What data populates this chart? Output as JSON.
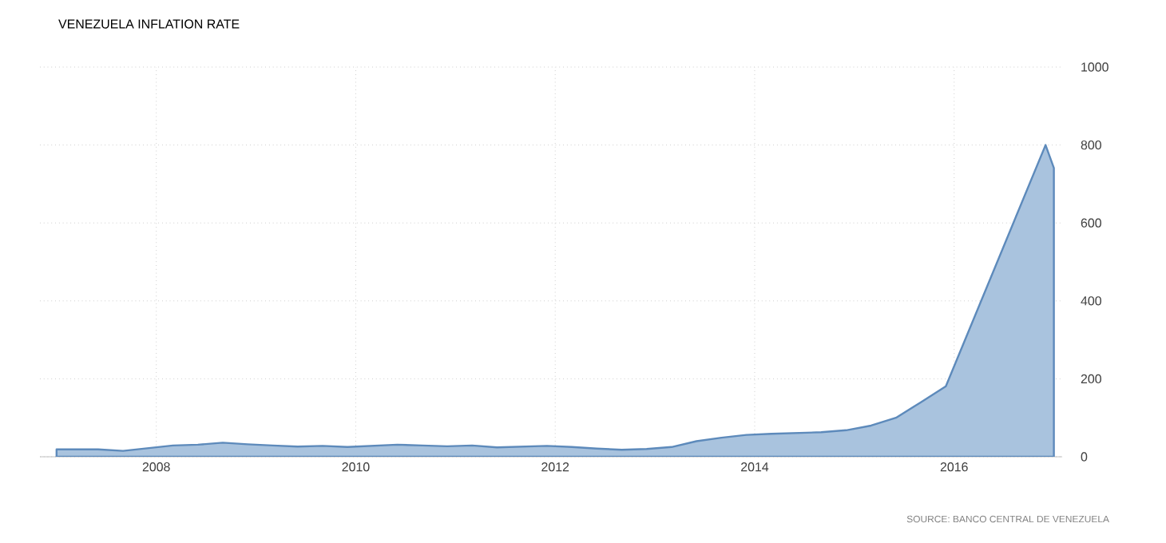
{
  "chart_data": {
    "type": "area",
    "title": "VENEZUELA INFLATION RATE",
    "annotations": [
      "SOURCE: BANCO CENTRAL DE VENEZUELA"
    ],
    "series": [
      {
        "color": "#a9c3de",
        "x": [
          "2007-01",
          "2007-03",
          "2007-06",
          "2007-09",
          "2007-12",
          "2008-03",
          "2008-06",
          "2008-09",
          "2008-12",
          "2009-03",
          "2009-06",
          "2009-09",
          "2009-12",
          "2010-03",
          "2010-06",
          "2010-09",
          "2010-12",
          "2011-03",
          "2011-06",
          "2011-09",
          "2011-12",
          "2012-03",
          "2012-06",
          "2012-09",
          "2012-12",
          "2013-03",
          "2013-06",
          "2013-09",
          "2013-12",
          "2014-03",
          "2014-06",
          "2014-09",
          "2014-12",
          "2015-03",
          "2015-06",
          "2015-09",
          "2015-12",
          "2016-12",
          "2017-01"
        ],
        "values": [
          19,
          19,
          19,
          15,
          22,
          29,
          31,
          36,
          32,
          29,
          26,
          28,
          25,
          28,
          31,
          29,
          27,
          29,
          24,
          26,
          28,
          25,
          21,
          18,
          20,
          25,
          40,
          49,
          56,
          59,
          61,
          63,
          68,
          80,
          100,
          140,
          181,
          800,
          741
        ]
      }
    ],
    "xlim": [
      "2006-11",
      "2017-02"
    ],
    "xticks": [
      {
        "value": "2008",
        "label": "2008"
      },
      {
        "value": "2010",
        "label": "2010"
      },
      {
        "value": "2012",
        "label": "2012"
      },
      {
        "value": "2014",
        "label": "2014"
      },
      {
        "value": "2016",
        "label": "2016"
      }
    ],
    "ylim": [
      0,
      1000
    ],
    "yticks": [
      0,
      200,
      400,
      600,
      800,
      1000
    ],
    "grid": true
  }
}
